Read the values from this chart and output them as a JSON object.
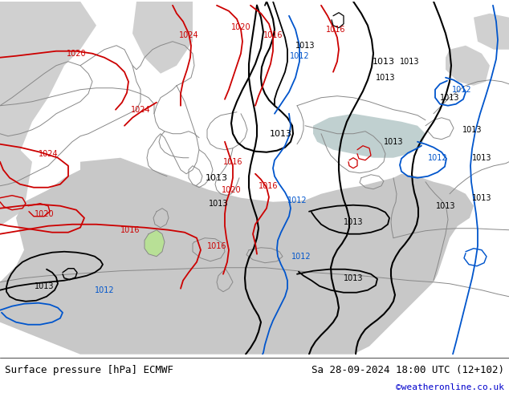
{
  "title_left": "Surface pressure [hPa] ECMWF",
  "title_right": "Sa 28-09-2024 18:00 UTC (12+102)",
  "credit": "©weatheronline.co.uk",
  "bg_land": "#b8e096",
  "bg_sea": "#c8c8c8",
  "fig_width": 6.34,
  "fig_height": 4.9,
  "bottom_bar_color": "#ffffff",
  "title_fontsize": 9,
  "credit_color": "#0000cc",
  "credit_fontsize": 8,
  "red": "#cc0000",
  "black": "#000000",
  "blue": "#0055cc",
  "gray_coast": "#888888",
  "label_fontsize": 7,
  "lw_main": 1.3,
  "lw_coast": 0.7
}
